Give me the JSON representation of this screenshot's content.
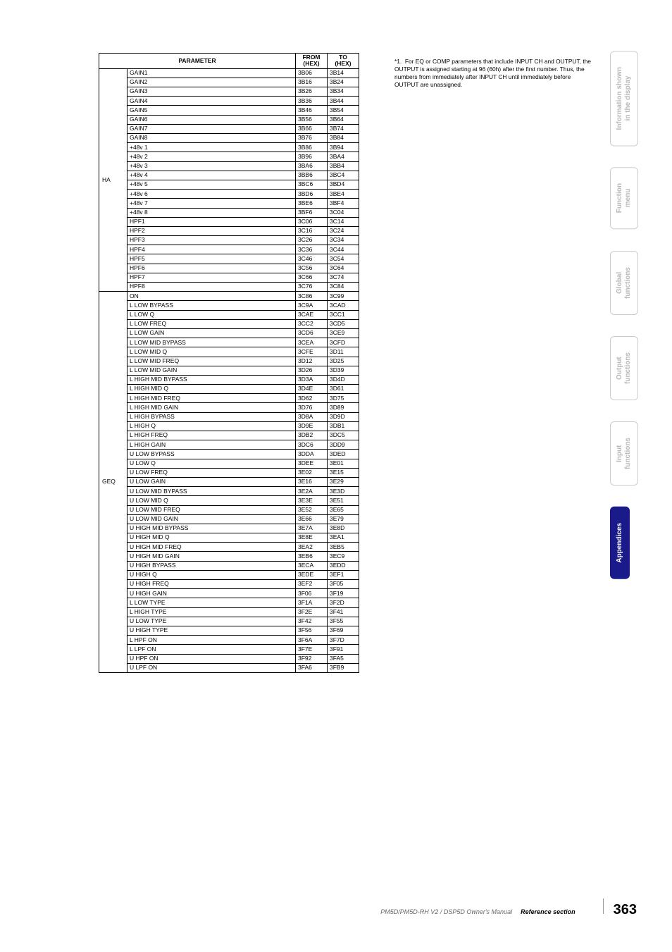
{
  "table": {
    "headers": {
      "parameter": "PARAMETER",
      "from": "FROM\n(HEX)",
      "to": "TO\n(HEX)"
    },
    "groups": [
      {
        "label": "HA",
        "rows": [
          {
            "p": "GAIN1",
            "f": "3B06",
            "t": "3B14"
          },
          {
            "p": "GAIN2",
            "f": "3B16",
            "t": "3B24"
          },
          {
            "p": "GAIN3",
            "f": "3B26",
            "t": "3B34"
          },
          {
            "p": "GAIN4",
            "f": "3B36",
            "t": "3B44"
          },
          {
            "p": "GAIN5",
            "f": "3B46",
            "t": "3B54"
          },
          {
            "p": "GAIN6",
            "f": "3B56",
            "t": "3B64"
          },
          {
            "p": "GAIN7",
            "f": "3B66",
            "t": "3B74"
          },
          {
            "p": "GAIN8",
            "f": "3B76",
            "t": "3B84"
          },
          {
            "p": "+48v 1",
            "f": "3B86",
            "t": "3B94"
          },
          {
            "p": "+48v 2",
            "f": "3B96",
            "t": "3BA4"
          },
          {
            "p": "+48v 3",
            "f": "3BA6",
            "t": "3BB4"
          },
          {
            "p": "+48v 4",
            "f": "3BB6",
            "t": "3BC4"
          },
          {
            "p": "+48v 5",
            "f": "3BC6",
            "t": "3BD4"
          },
          {
            "p": "+48v 6",
            "f": "3BD6",
            "t": "3BE4"
          },
          {
            "p": "+48v 7",
            "f": "3BE6",
            "t": "3BF4"
          },
          {
            "p": "+48v 8",
            "f": "3BF6",
            "t": "3C04"
          },
          {
            "p": "HPF1",
            "f": "3C06",
            "t": "3C14"
          },
          {
            "p": "HPF2",
            "f": "3C16",
            "t": "3C24"
          },
          {
            "p": "HPF3",
            "f": "3C26",
            "t": "3C34"
          },
          {
            "p": "HPF4",
            "f": "3C36",
            "t": "3C44"
          },
          {
            "p": "HPF5",
            "f": "3C46",
            "t": "3C54"
          },
          {
            "p": "HPF6",
            "f": "3C56",
            "t": "3C64"
          },
          {
            "p": "HPF7",
            "f": "3C66",
            "t": "3C74"
          },
          {
            "p": "HPF8",
            "f": "3C76",
            "t": "3C84"
          }
        ]
      },
      {
        "label": "GEQ",
        "rows": [
          {
            "p": "ON",
            "f": "3C86",
            "t": "3C99"
          },
          {
            "p": "L LOW BYPASS",
            "f": "3C9A",
            "t": "3CAD"
          },
          {
            "p": "L LOW Q",
            "f": "3CAE",
            "t": "3CC1"
          },
          {
            "p": "L LOW FREQ",
            "f": "3CC2",
            "t": "3CD5"
          },
          {
            "p": "L LOW GAIN",
            "f": "3CD6",
            "t": "3CE9"
          },
          {
            "p": "L LOW MID BYPASS",
            "f": "3CEA",
            "t": "3CFD"
          },
          {
            "p": "L LOW MID Q",
            "f": "3CFE",
            "t": "3D11"
          },
          {
            "p": "L LOW MID FREQ",
            "f": "3D12",
            "t": "3D25"
          },
          {
            "p": "L LOW MID GAIN",
            "f": "3D26",
            "t": "3D39"
          },
          {
            "p": "L HIGH MID BYPASS",
            "f": "3D3A",
            "t": "3D4D"
          },
          {
            "p": "L HIGH MID Q",
            "f": "3D4E",
            "t": "3D61"
          },
          {
            "p": "L HIGH MID FREQ",
            "f": "3D62",
            "t": "3D75"
          },
          {
            "p": "L HIGH MID GAIN",
            "f": "3D76",
            "t": "3D89"
          },
          {
            "p": "L HIGH BYPASS",
            "f": "3D8A",
            "t": "3D9D"
          },
          {
            "p": "L HIGH Q",
            "f": "3D9E",
            "t": "3DB1"
          },
          {
            "p": "L HIGH FREQ",
            "f": "3DB2",
            "t": "3DC5"
          },
          {
            "p": "L HIGH GAIN",
            "f": "3DC6",
            "t": "3DD9"
          },
          {
            "p": "U LOW BYPASS",
            "f": "3DDA",
            "t": "3DED"
          },
          {
            "p": "U LOW Q",
            "f": "3DEE",
            "t": "3E01"
          },
          {
            "p": "U LOW FREQ",
            "f": "3E02",
            "t": "3E15"
          },
          {
            "p": "U LOW GAIN",
            "f": "3E16",
            "t": "3E29"
          },
          {
            "p": "U LOW MID BYPASS",
            "f": "3E2A",
            "t": "3E3D"
          },
          {
            "p": "U LOW MID Q",
            "f": "3E3E",
            "t": "3E51"
          },
          {
            "p": "U LOW MID FREQ",
            "f": "3E52",
            "t": "3E65"
          },
          {
            "p": "U LOW MID GAIN",
            "f": "3E66",
            "t": "3E79"
          },
          {
            "p": "U HIGH MID BYPASS",
            "f": "3E7A",
            "t": "3E8D"
          },
          {
            "p": "U HIGH MID Q",
            "f": "3E8E",
            "t": "3EA1"
          },
          {
            "p": "U HIGH MID FREQ",
            "f": "3EA2",
            "t": "3EB5"
          },
          {
            "p": "U HIGH MID GAIN",
            "f": "3EB6",
            "t": "3EC9"
          },
          {
            "p": "U HIGH BYPASS",
            "f": "3ECA",
            "t": "3EDD"
          },
          {
            "p": "U HIGH Q",
            "f": "3EDE",
            "t": "3EF1"
          },
          {
            "p": "U HIGH FREQ",
            "f": "3EF2",
            "t": "3F05"
          },
          {
            "p": "U HIGH GAIN",
            "f": "3F06",
            "t": "3F19"
          },
          {
            "p": "L LOW TYPE",
            "f": "3F1A",
            "t": "3F2D"
          },
          {
            "p": "L HIGH TYPE",
            "f": "3F2E",
            "t": "3F41"
          },
          {
            "p": "U LOW TYPE",
            "f": "3F42",
            "t": "3F55"
          },
          {
            "p": "U HIGH TYPE",
            "f": "3F56",
            "t": "3F69"
          },
          {
            "p": "L HPF ON",
            "f": "3F6A",
            "t": "3F7D"
          },
          {
            "p": "L LPF ON",
            "f": "3F7E",
            "t": "3F91"
          },
          {
            "p": "U HPF ON",
            "f": "3F92",
            "t": "3FA5"
          },
          {
            "p": "U LPF ON",
            "f": "3FA6",
            "t": "3FB9"
          }
        ]
      }
    ]
  },
  "footnote": {
    "marker": "*1.",
    "text": "For EQ or COMP parameters that include INPUT CH and OUTPUT, the OUTPUT is assigned starting at 96 (60h) after the first number. Thus, the numbers from immediately after INPUT CH until immediately before OUTPUT are unassigned."
  },
  "tabs": [
    {
      "label": "Information shown\nin the display",
      "active": false
    },
    {
      "label": "Function\nmenu",
      "active": false
    },
    {
      "label": "Global\nfunctions",
      "active": false
    },
    {
      "label": "Output\nfunctions",
      "active": false
    },
    {
      "label": "Input\nfunctions",
      "active": false
    },
    {
      "label": "Appendices",
      "active": true
    }
  ],
  "footer": {
    "manual": "PM5D/PM5D-RH V2 / DSP5D Owner's Manual",
    "section": "Reference section",
    "page": "363"
  }
}
